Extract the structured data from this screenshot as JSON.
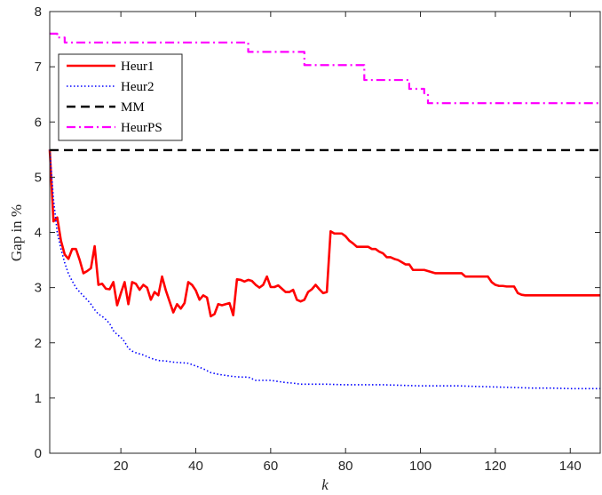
{
  "chart_data": {
    "type": "line",
    "title": "",
    "xlabel": "k",
    "ylabel": "Gap in %",
    "xlim": [
      1,
      148
    ],
    "ylim": [
      0,
      8
    ],
    "xticks": [
      20,
      40,
      60,
      80,
      100,
      120,
      140
    ],
    "yticks": [
      0,
      1,
      2,
      3,
      4,
      5,
      6,
      7,
      8
    ],
    "grid": false,
    "legend_position": "top-left",
    "series": [
      {
        "name": "Heur1",
        "color": "#ff0000",
        "style": "solid",
        "x": [
          1,
          2,
          3,
          4,
          5,
          6,
          7,
          8,
          9,
          10,
          11,
          12,
          13,
          14,
          15,
          16,
          17,
          18,
          19,
          20,
          21,
          22,
          23,
          24,
          25,
          26,
          27,
          28,
          29,
          30,
          31,
          32,
          33,
          34,
          35,
          36,
          37,
          38,
          39,
          40,
          41,
          42,
          43,
          44,
          45,
          46,
          47,
          48,
          49,
          50,
          51,
          52,
          53,
          54,
          55,
          56,
          57,
          58,
          59,
          60,
          61,
          62,
          63,
          64,
          65,
          66,
          67,
          68,
          69,
          70,
          71,
          72,
          73,
          74,
          75,
          76,
          77,
          78,
          79,
          80,
          81,
          82,
          83,
          84,
          85,
          86,
          87,
          88,
          89,
          90,
          91,
          92,
          93,
          94,
          95,
          96,
          97,
          98,
          99,
          100,
          101,
          102,
          103,
          104,
          105,
          106,
          107,
          108,
          109,
          110,
          111,
          112,
          113,
          114,
          115,
          116,
          117,
          118,
          119,
          120,
          121,
          122,
          123,
          124,
          125,
          126,
          127,
          128,
          129,
          130,
          131,
          132,
          133,
          134,
          135,
          136,
          137,
          138,
          139,
          140,
          141,
          142,
          143,
          144,
          145,
          146,
          147,
          148
        ],
        "y": [
          5.5,
          4.2,
          4.27,
          3.85,
          3.6,
          3.52,
          3.7,
          3.7,
          3.5,
          3.26,
          3.3,
          3.35,
          3.75,
          3.05,
          3.07,
          2.98,
          2.97,
          3.1,
          2.68,
          2.9,
          3.1,
          2.7,
          3.1,
          3.07,
          2.96,
          3.05,
          3.0,
          2.78,
          2.92,
          2.86,
          3.2,
          2.95,
          2.75,
          2.55,
          2.7,
          2.62,
          2.72,
          3.1,
          3.05,
          2.95,
          2.78,
          2.86,
          2.82,
          2.48,
          2.52,
          2.7,
          2.68,
          2.7,
          2.72,
          2.5,
          3.15,
          3.14,
          3.11,
          3.14,
          3.12,
          3.05,
          3.0,
          3.05,
          3.2,
          3.01,
          3.01,
          3.04,
          2.98,
          2.92,
          2.92,
          2.96,
          2.78,
          2.75,
          2.78,
          2.92,
          2.97,
          3.05,
          2.97,
          2.9,
          2.92,
          4.02,
          3.98,
          3.98,
          3.98,
          3.93,
          3.85,
          3.8,
          3.74,
          3.74,
          3.74,
          3.74,
          3.7,
          3.7,
          3.65,
          3.62,
          3.55,
          3.55,
          3.52,
          3.5,
          3.46,
          3.42,
          3.42,
          3.32,
          3.32,
          3.32,
          3.32,
          3.3,
          3.28,
          3.26,
          3.26,
          3.26,
          3.26,
          3.26,
          3.26,
          3.26,
          3.26,
          3.2,
          3.2,
          3.2,
          3.2,
          3.2,
          3.2,
          3.2,
          3.1,
          3.05,
          3.03,
          3.03,
          3.02,
          3.02,
          3.02,
          2.9,
          2.87,
          2.86,
          2.86,
          2.86,
          2.86,
          2.86,
          2.86,
          2.86,
          2.86,
          2.86,
          2.86,
          2.86,
          2.86,
          2.86,
          2.86,
          2.86,
          2.86,
          2.86,
          2.86,
          2.86,
          2.86,
          2.86
        ]
      },
      {
        "name": "Heur2",
        "color": "#0000ff",
        "style": "dotted",
        "x": [
          1,
          2,
          3,
          4,
          5,
          6,
          7,
          8,
          9,
          10,
          11,
          12,
          13,
          14,
          15,
          16,
          17,
          18,
          19,
          20,
          21,
          22,
          23,
          24,
          25,
          26,
          27,
          28,
          29,
          30,
          32,
          34,
          36,
          38,
          40,
          42,
          44,
          46,
          48,
          50,
          52,
          54,
          56,
          58,
          60,
          62,
          64,
          66,
          68,
          70,
          75,
          80,
          85,
          90,
          95,
          100,
          105,
          110,
          115,
          120,
          125,
          130,
          135,
          140,
          145,
          148
        ],
        "y": [
          5.5,
          4.6,
          4.0,
          3.7,
          3.45,
          3.25,
          3.12,
          3.0,
          2.92,
          2.85,
          2.78,
          2.7,
          2.6,
          2.52,
          2.48,
          2.42,
          2.35,
          2.22,
          2.15,
          2.1,
          2.02,
          1.9,
          1.85,
          1.82,
          1.8,
          1.78,
          1.75,
          1.72,
          1.7,
          1.68,
          1.67,
          1.65,
          1.64,
          1.63,
          1.58,
          1.53,
          1.46,
          1.43,
          1.41,
          1.39,
          1.38,
          1.38,
          1.32,
          1.32,
          1.32,
          1.3,
          1.28,
          1.27,
          1.25,
          1.25,
          1.25,
          1.24,
          1.24,
          1.24,
          1.23,
          1.22,
          1.22,
          1.22,
          1.21,
          1.2,
          1.19,
          1.18,
          1.18,
          1.17,
          1.17,
          1.17
        ]
      },
      {
        "name": "MM",
        "color": "#000000",
        "style": "dashed",
        "x": [
          1,
          148
        ],
        "y": [
          5.49,
          5.49
        ]
      },
      {
        "name": "HeurPS",
        "color": "#ff00ff",
        "style": "dashdot",
        "x": [
          1,
          3,
          3,
          5,
          5,
          54,
          54,
          69,
          69,
          85,
          85,
          97,
          97,
          101,
          101,
          102,
          102,
          148
        ],
        "y": [
          7.6,
          7.6,
          7.53,
          7.53,
          7.44,
          7.44,
          7.27,
          7.27,
          7.03,
          7.03,
          6.76,
          6.76,
          6.6,
          6.6,
          6.52,
          6.52,
          6.34,
          6.34
        ]
      }
    ]
  }
}
